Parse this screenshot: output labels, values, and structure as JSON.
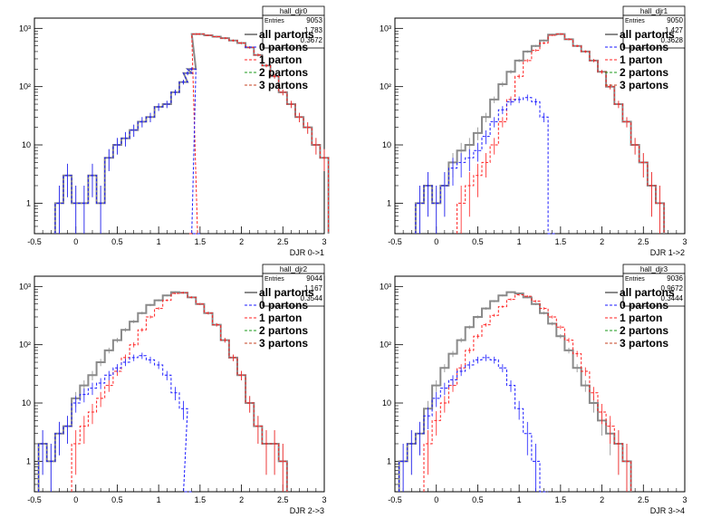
{
  "chart_data": [
    {
      "type": "line",
      "title": "hall_djr0",
      "xlabel": "DJR 0->1",
      "x_ticks": [
        "-0.5",
        "0",
        "0.5",
        "1",
        "1.5",
        "2",
        "2.5",
        "3"
      ],
      "y_ticks": [
        "1",
        "10",
        "10²",
        "10³"
      ],
      "xlim": [
        -0.5,
        3.0
      ],
      "ylim": [
        0.3,
        1500
      ],
      "yscale": "log",
      "stats": {
        "entries_label": "Entries",
        "entries": "9053",
        "mean": "1.783",
        "rms": "0.3672"
      },
      "legend": [
        "all partons",
        "0 partons",
        "1 parton",
        "2 partons",
        "3 partons"
      ],
      "colors": {
        "all": "#8a8a8a",
        "p0": "#1a1aff",
        "p1": "#ff2020",
        "p2": "#1a9a1a",
        "p3": "#c44020"
      },
      "series": [
        {
          "name": "all partons",
          "key": "all",
          "x": [
            -0.2,
            -0.1,
            0.0,
            0.1,
            0.2,
            0.3,
            0.4,
            0.5,
            0.6,
            0.7,
            0.8,
            0.9,
            1.0,
            1.1,
            1.2,
            1.3,
            1.35,
            1.4,
            1.45,
            1.5,
            1.6,
            1.7,
            1.8,
            1.9,
            2.0,
            2.1,
            2.2,
            2.3,
            2.4,
            2.5,
            2.6,
            2.7,
            2.8,
            2.9,
            3.0
          ],
          "y": [
            1,
            3,
            1,
            1,
            3,
            1,
            6,
            10,
            13,
            18,
            25,
            30,
            45,
            50,
            80,
            120,
            170,
            200,
            800,
            800,
            760,
            720,
            680,
            620,
            560,
            470,
            350,
            230,
            150,
            80,
            50,
            30,
            20,
            10,
            6
          ]
        },
        {
          "name": "0 partons",
          "key": "p0",
          "x": [
            -0.2,
            -0.1,
            0.0,
            0.1,
            0.2,
            0.3,
            0.4,
            0.5,
            0.6,
            0.7,
            0.8,
            0.9,
            1.0,
            1.1,
            1.2,
            1.3,
            1.35,
            1.4,
            1.45
          ],
          "y": [
            1,
            3,
            1,
            1,
            3,
            1,
            6,
            10,
            13,
            18,
            25,
            30,
            45,
            50,
            80,
            120,
            170,
            200,
            0.3
          ]
        },
        {
          "name": "1 parton",
          "key": "p1",
          "x": [
            1.42,
            1.45,
            1.5,
            1.6,
            1.7,
            1.8,
            1.9,
            2.0,
            2.1,
            2.2,
            2.3,
            2.4,
            2.5,
            2.6,
            2.7,
            2.8,
            2.9,
            3.0
          ],
          "y": [
            0.3,
            800,
            800,
            760,
            720,
            680,
            620,
            560,
            470,
            350,
            230,
            150,
            80,
            50,
            30,
            20,
            10,
            6
          ]
        }
      ]
    },
    {
      "type": "line",
      "title": "hall_djr1",
      "xlabel": "DJR 1->2",
      "x_ticks": [
        "-0.5",
        "0",
        "0.5",
        "1",
        "1.5",
        "2",
        "2.5",
        "3"
      ],
      "y_ticks": [
        "1",
        "10",
        "10²",
        "10³"
      ],
      "xlim": [
        -0.5,
        3.0
      ],
      "ylim": [
        0.3,
        1500
      ],
      "yscale": "log",
      "stats": {
        "entries_label": "Entries",
        "entries": "9050",
        "mean": "1.427",
        "rms": "0.3628"
      },
      "legend": [
        "all partons",
        "0 partons",
        "1 parton",
        "2 partons",
        "3 partons"
      ],
      "colors": {
        "all": "#8a8a8a",
        "p0": "#1a1aff",
        "p1": "#ff2020",
        "p2": "#1a9a1a",
        "p3": "#c44020"
      },
      "series": [
        {
          "name": "all partons",
          "key": "all",
          "x": [
            -0.2,
            -0.1,
            0.0,
            0.1,
            0.2,
            0.3,
            0.4,
            0.5,
            0.6,
            0.7,
            0.8,
            0.9,
            1.0,
            1.1,
            1.2,
            1.3,
            1.4,
            1.5,
            1.6,
            1.7,
            1.8,
            1.9,
            2.0,
            2.1,
            2.2,
            2.3,
            2.4,
            2.5,
            2.6,
            2.7
          ],
          "y": [
            1,
            2,
            1,
            2,
            5,
            8,
            10,
            16,
            30,
            60,
            110,
            180,
            280,
            400,
            500,
            620,
            780,
            800,
            650,
            500,
            400,
            280,
            180,
            100,
            50,
            25,
            10,
            5,
            2,
            1
          ]
        },
        {
          "name": "0 partons",
          "key": "p0",
          "x": [
            -0.2,
            -0.1,
            0.0,
            0.1,
            0.2,
            0.3,
            0.4,
            0.5,
            0.6,
            0.7,
            0.8,
            0.9,
            1.0,
            1.1,
            1.2,
            1.3,
            1.4
          ],
          "y": [
            1,
            2,
            1,
            2,
            4,
            5,
            6,
            8,
            14,
            25,
            40,
            55,
            60,
            65,
            55,
            30,
            0.3
          ]
        },
        {
          "name": "1 parton",
          "key": "p1",
          "x": [
            0.3,
            0.4,
            0.5,
            0.6,
            0.7,
            0.8,
            0.9,
            1.0,
            1.1,
            1.2,
            1.3,
            1.4,
            1.5,
            1.6,
            1.7,
            1.8,
            1.9,
            2.0,
            2.1,
            2.2,
            2.3,
            2.4,
            2.5,
            2.6,
            2.7
          ],
          "y": [
            1,
            2,
            3,
            5,
            10,
            25,
            60,
            150,
            280,
            420,
            560,
            760,
            800,
            650,
            500,
            400,
            280,
            180,
            100,
            50,
            25,
            10,
            5,
            2,
            1
          ]
        }
      ]
    },
    {
      "type": "line",
      "title": "hall_djr2",
      "xlabel": "DJR 2->3",
      "x_ticks": [
        "-0.5",
        "0",
        "0.5",
        "1",
        "1.5",
        "2",
        "2.5",
        "3"
      ],
      "y_ticks": [
        "1",
        "10",
        "10²",
        "10³"
      ],
      "xlim": [
        -0.5,
        3.0
      ],
      "ylim": [
        0.3,
        1500
      ],
      "yscale": "log",
      "stats": {
        "entries_label": "Entries",
        "entries": "9044",
        "mean": "1.167",
        "rms": "0.3544"
      },
      "legend": [
        "all partons",
        "0 partons",
        "1 parton",
        "2 partons",
        "3 partons"
      ],
      "colors": {
        "all": "#8a8a8a",
        "p0": "#1a1aff",
        "p1": "#ff2020",
        "p2": "#1a9a1a",
        "p3": "#c44020"
      },
      "series": [
        {
          "name": "all partons",
          "key": "all",
          "x": [
            -0.4,
            -0.3,
            -0.2,
            -0.1,
            0.0,
            0.1,
            0.2,
            0.3,
            0.4,
            0.5,
            0.6,
            0.7,
            0.8,
            0.9,
            1.0,
            1.1,
            1.2,
            1.3,
            1.4,
            1.5,
            1.6,
            1.7,
            1.8,
            1.9,
            2.0,
            2.1,
            2.2,
            2.3,
            2.4,
            2.5
          ],
          "y": [
            2,
            1,
            3,
            4,
            12,
            20,
            30,
            50,
            80,
            120,
            180,
            250,
            350,
            480,
            580,
            700,
            800,
            780,
            650,
            500,
            350,
            220,
            120,
            60,
            30,
            10,
            4,
            2,
            2,
            1
          ]
        },
        {
          "name": "0 partons",
          "key": "p0",
          "x": [
            -0.4,
            -0.3,
            -0.2,
            -0.1,
            0.0,
            0.1,
            0.2,
            0.3,
            0.4,
            0.5,
            0.6,
            0.7,
            0.8,
            0.9,
            1.0,
            1.1,
            1.2,
            1.3,
            1.35
          ],
          "y": [
            2,
            1,
            3,
            4,
            10,
            14,
            18,
            22,
            30,
            40,
            50,
            60,
            65,
            55,
            45,
            30,
            15,
            8,
            0.3
          ]
        },
        {
          "name": "1 parton",
          "key": "p1",
          "x": [
            0.0,
            0.1,
            0.2,
            0.3,
            0.4,
            0.5,
            0.6,
            0.7,
            0.8,
            0.9,
            1.0,
            1.1,
            1.2,
            1.3,
            1.4,
            1.5,
            1.6,
            1.7,
            1.8,
            1.9,
            2.0,
            2.1,
            2.2,
            2.3,
            2.4,
            2.5
          ],
          "y": [
            2,
            4,
            7,
            12,
            20,
            35,
            60,
            100,
            180,
            300,
            420,
            580,
            760,
            780,
            650,
            500,
            350,
            220,
            120,
            60,
            30,
            10,
            4,
            2,
            2,
            1
          ]
        }
      ]
    },
    {
      "type": "line",
      "title": "hall_djr3",
      "xlabel": "DJR 3->4",
      "x_ticks": [
        "-0.5",
        "0",
        "0.5",
        "1",
        "1.5",
        "2",
        "2.5",
        "3"
      ],
      "y_ticks": [
        "1",
        "10",
        "10²",
        "10³"
      ],
      "xlim": [
        -0.5,
        3.0
      ],
      "ylim": [
        0.3,
        1500
      ],
      "yscale": "log",
      "stats": {
        "entries_label": "Entries",
        "entries": "9036",
        "mean": "0.9672",
        "rms": "0.3444"
      },
      "legend": [
        "all partons",
        "0 partons",
        "1 parton",
        "2 partons",
        "3 partons"
      ],
      "colors": {
        "all": "#8a8a8a",
        "p0": "#1a1aff",
        "p1": "#ff2020",
        "p2": "#1a9a1a",
        "p3": "#c44020"
      },
      "series": [
        {
          "name": "all partons",
          "key": "all",
          "x": [
            -0.4,
            -0.3,
            -0.2,
            -0.1,
            0.0,
            0.1,
            0.2,
            0.3,
            0.4,
            0.5,
            0.6,
            0.7,
            0.8,
            0.9,
            1.0,
            1.1,
            1.2,
            1.3,
            1.4,
            1.5,
            1.6,
            1.7,
            1.8,
            1.9,
            2.0,
            2.1,
            2.2,
            2.3
          ],
          "y": [
            1,
            2,
            3,
            8,
            20,
            40,
            70,
            120,
            200,
            300,
            420,
            560,
            700,
            800,
            760,
            650,
            500,
            350,
            230,
            140,
            80,
            40,
            20,
            10,
            5,
            3,
            2,
            1
          ]
        },
        {
          "name": "0 partons",
          "key": "p0",
          "x": [
            -0.4,
            -0.3,
            -0.2,
            -0.1,
            0.0,
            0.1,
            0.2,
            0.3,
            0.4,
            0.5,
            0.6,
            0.7,
            0.8,
            0.9,
            1.0,
            1.1,
            1.2,
            1.3
          ],
          "y": [
            1,
            2,
            3,
            6,
            12,
            18,
            25,
            35,
            45,
            55,
            60,
            55,
            40,
            20,
            8,
            3,
            1,
            0.3
          ]
        },
        {
          "name": "1 parton",
          "key": "p1",
          "x": [
            -0.1,
            0.0,
            0.1,
            0.2,
            0.3,
            0.4,
            0.5,
            0.6,
            0.7,
            0.8,
            0.9,
            1.0,
            1.1,
            1.2,
            1.3,
            1.4,
            1.5,
            1.6,
            1.7,
            1.8,
            1.9,
            2.0,
            2.1,
            2.2,
            2.3
          ],
          "y": [
            2,
            5,
            10,
            20,
            40,
            80,
            140,
            220,
            320,
            450,
            600,
            720,
            680,
            560,
            420,
            300,
            200,
            120,
            70,
            35,
            15,
            7,
            4,
            2,
            1
          ]
        }
      ]
    }
  ]
}
